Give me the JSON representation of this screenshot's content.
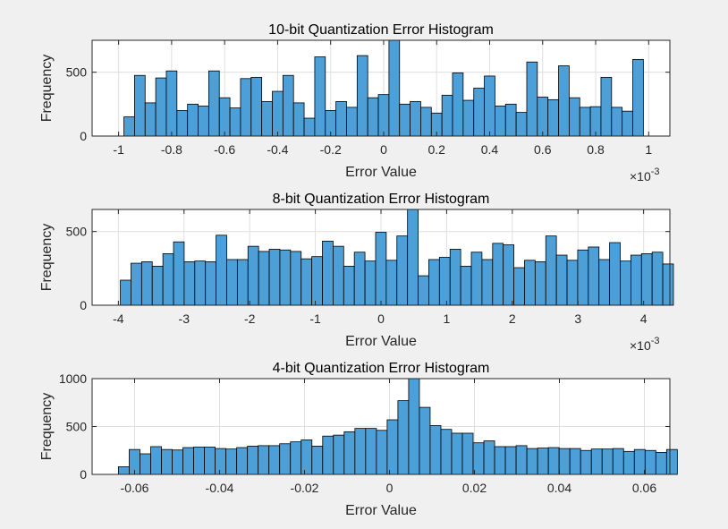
{
  "chart_data": [
    {
      "type": "bar",
      "title": "10-bit Quantization Error Histogram",
      "xlabel": "Error Value",
      "ylabel": "Frequency",
      "x_exponent": "-3",
      "xlim": [
        -1.1,
        1.08
      ],
      "ylim": [
        0,
        750
      ],
      "xticks": [
        -1,
        -0.8,
        -0.6,
        -0.4,
        -0.2,
        0,
        0.2,
        0.4,
        0.6,
        0.8,
        1
      ],
      "xtick_labels": [
        "-1",
        "-0.8",
        "-0.6",
        "-0.4",
        "-0.2",
        "0",
        "0.2",
        "0.4",
        "0.6",
        "0.8",
        "1"
      ],
      "yticks": [
        0,
        500
      ],
      "ytick_labels": [
        "0",
        "500"
      ],
      "grid": true,
      "bin_start": -0.98,
      "bin_width": 0.04,
      "values": [
        150,
        475,
        260,
        455,
        510,
        200,
        250,
        235,
        510,
        300,
        220,
        450,
        460,
        270,
        350,
        475,
        260,
        140,
        620,
        200,
        270,
        225,
        630,
        300,
        325,
        750,
        250,
        270,
        225,
        180,
        320,
        495,
        280,
        375,
        470,
        235,
        250,
        185,
        580,
        305,
        285,
        550,
        300,
        225,
        230,
        460,
        225,
        195,
        600
      ]
    },
    {
      "type": "bar",
      "title": "8-bit Quantization Error Histogram",
      "xlabel": "Error Value",
      "ylabel": "Frequency",
      "x_exponent": "-3",
      "xlim": [
        -4.4,
        4.4
      ],
      "ylim": [
        0,
        650
      ],
      "xticks": [
        -4,
        -3,
        -2,
        -1,
        0,
        1,
        2,
        3,
        4
      ],
      "xtick_labels": [
        "-4",
        "-3",
        "-2",
        "-1",
        "0",
        "1",
        "2",
        "3",
        "4"
      ],
      "yticks": [
        0,
        500
      ],
      "ytick_labels": [
        "0",
        "500"
      ],
      "grid": true,
      "bin_start": -3.97,
      "bin_width": 0.162,
      "values": [
        170,
        285,
        295,
        265,
        350,
        430,
        295,
        300,
        295,
        475,
        310,
        310,
        400,
        365,
        380,
        375,
        365,
        315,
        330,
        435,
        400,
        265,
        360,
        300,
        495,
        305,
        470,
        650,
        200,
        310,
        325,
        380,
        265,
        360,
        310,
        420,
        410,
        255,
        305,
        295,
        470,
        340,
        305,
        375,
        395,
        310,
        425,
        300,
        340,
        350,
        360,
        280
      ]
    },
    {
      "type": "bar",
      "title": "4-bit Quantization Error Histogram",
      "xlabel": "Error Value",
      "ylabel": "Frequency",
      "x_exponent": "",
      "xlim": [
        -0.07,
        0.066
      ],
      "ylim": [
        0,
        1000
      ],
      "xticks": [
        -0.06,
        -0.04,
        -0.02,
        0,
        0.02,
        0.04,
        0.06
      ],
      "xtick_labels": [
        "-0.06",
        "-0.04",
        "-0.02",
        "0",
        "0.02",
        "0.04",
        "0.06"
      ],
      "yticks": [
        0,
        500,
        1000
      ],
      "ytick_labels": [
        "0",
        "500",
        "1000"
      ],
      "grid": true,
      "bin_start": -0.0638,
      "bin_width": 0.00253,
      "values": [
        80,
        260,
        215,
        290,
        260,
        255,
        280,
        285,
        285,
        270,
        265,
        280,
        295,
        300,
        300,
        320,
        340,
        360,
        295,
        400,
        410,
        445,
        480,
        480,
        460,
        570,
        770,
        1000,
        700,
        510,
        470,
        430,
        430,
        330,
        350,
        290,
        290,
        300,
        270,
        275,
        280,
        270,
        270,
        250,
        265,
        265,
        270,
        240,
        260,
        250,
        230,
        260
      ]
    }
  ]
}
